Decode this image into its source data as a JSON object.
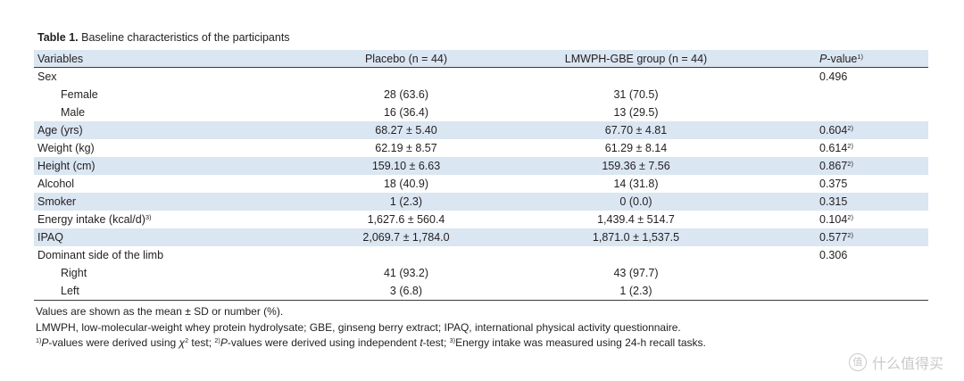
{
  "caption": {
    "label": "Table 1.",
    "text": "Baseline characteristics of the participants"
  },
  "headers": {
    "variables": "Variables",
    "placebo": "Placebo (n = 44)",
    "treatment": "LMWPH-GBE group (n = 44)",
    "p_value": {
      "italic": "P",
      "text": "-value",
      "note": "1)"
    }
  },
  "rows": [
    {
      "label": "Sex",
      "p": "0.496"
    },
    {
      "label": "Female",
      "placebo": "28 (63.6)",
      "treatment": "31 (70.5)"
    },
    {
      "label": "Male",
      "placebo": "16 (36.4)",
      "treatment": "13 (29.5)"
    },
    {
      "label": "Age (yrs)",
      "placebo": "68.27 ± 5.40",
      "treatment": "67.70 ± 4.81",
      "p": "0.604",
      "p_note": "2)"
    },
    {
      "label": "Weight (kg)",
      "placebo": "62.19 ± 8.57",
      "treatment": "61.29 ± 8.14",
      "p": "0.614",
      "p_note": "2)"
    },
    {
      "label": "Height (cm)",
      "placebo": "159.10 ± 6.63",
      "treatment": "159.36 ± 7.56",
      "p": "0.867",
      "p_note": "2)"
    },
    {
      "label": "Alcohol",
      "placebo": "18 (40.9)",
      "treatment": "14 (31.8)",
      "p": "0.375"
    },
    {
      "label": "Smoker",
      "placebo": "1 (2.3)",
      "treatment": "0 (0.0)",
      "p": "0.315"
    },
    {
      "label": "Energy intake (kcal/d)",
      "label_note": "3)",
      "placebo": "1,627.6 ± 560.4",
      "treatment": "1,439.4 ± 514.7",
      "p": "0.104",
      "p_note": "2)"
    },
    {
      "label": "IPAQ",
      "placebo": "2,069.7 ± 1,784.0",
      "treatment": "1,871.0 ± 1,537.5",
      "p": "0.577",
      "p_note": "2)"
    },
    {
      "label": "Dominant side of the limb",
      "p": "0.306"
    },
    {
      "label": "Right",
      "placebo": "41 (93.2)",
      "treatment": "43 (97.7)"
    },
    {
      "label": "Left",
      "placebo": "3 (6.8)",
      "treatment": "1 (2.3)"
    }
  ],
  "footnotes": {
    "values": "Values are shown as the mean ± SD or number (%).",
    "abbreviations": "LMWPH, low-molecular-weight whey protein hydrolysate; GBE, ginseng berry extract; IPAQ, international physical activity questionnaire.",
    "notes": {
      "n1_mark": "1)",
      "n1_italic": "P",
      "n1_text": "-values were derived using ",
      "n1_chi": "χ",
      "n1_chi_sup": "2",
      "n1_end": " test; ",
      "n2_mark": "2)",
      "n2_italic": "P",
      "n2_text": "-values were derived using independent ",
      "n2_t": "t",
      "n2_end": "-test; ",
      "n3_mark": "3)",
      "n3_text": "Energy intake was measured using 24-h recall tasks."
    }
  },
  "watermark": {
    "badge": "值",
    "text": "什么值得买"
  },
  "colors": {
    "header_bg": "#dae6f2",
    "stripe_bg": "#dae6f2",
    "text": "#231f20",
    "rule": "#3a3a3a",
    "watermark": "#c9c9c9"
  }
}
